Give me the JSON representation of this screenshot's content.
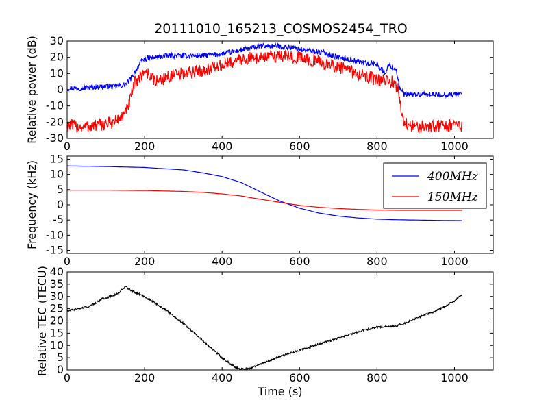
{
  "figure_title": "20111010_165213_COSMOS2454_TRO",
  "colors": {
    "series_400": "#0000ff",
    "series_150": "#ff0000",
    "tec": "#000000",
    "axes": "#000000",
    "background": "#ffffff"
  },
  "chart_data": [
    {
      "type": "line",
      "title": "20111010_165213_COSMOS2454_TRO",
      "xlabel": "",
      "ylabel": "Relative power (dB)",
      "xlim": [
        0,
        1100
      ],
      "ylim": [
        -30,
        30
      ],
      "xticks": [
        0,
        200,
        400,
        600,
        800,
        1000
      ],
      "yticks": [
        -30,
        -20,
        -10,
        0,
        10,
        20,
        30
      ],
      "grid": false,
      "series": [
        {
          "color": "#0000ff",
          "noise": 1.6,
          "x": [
            0,
            40,
            80,
            120,
            150,
            165,
            180,
            190,
            200,
            230,
            260,
            300,
            350,
            400,
            420,
            460,
            500,
            540,
            580,
            620,
            660,
            700,
            740,
            780,
            800,
            820,
            830,
            840,
            850,
            860,
            870,
            900,
            1000,
            1020
          ],
          "y": [
            1,
            1,
            2,
            2,
            3,
            7,
            13,
            17,
            19,
            20,
            21,
            21,
            21,
            22,
            23,
            25,
            27,
            27,
            26,
            24,
            23,
            20,
            18,
            16,
            16,
            10,
            15,
            14,
            12,
            0,
            -3,
            -3,
            -3,
            -2
          ]
        },
        {
          "color": "#ff0000",
          "noise": 4,
          "x": [
            0,
            40,
            80,
            120,
            150,
            165,
            175,
            190,
            200,
            230,
            260,
            300,
            350,
            400,
            450,
            500,
            550,
            600,
            650,
            700,
            750,
            800,
            840,
            855,
            865,
            880,
            900,
            950,
            1000,
            1020
          ],
          "y": [
            -22,
            -23,
            -22,
            -20,
            -15,
            -5,
            5,
            8,
            12,
            5,
            8,
            10,
            12,
            15,
            19,
            20,
            21,
            20,
            17,
            14,
            10,
            6,
            5,
            0,
            -18,
            -22,
            -23,
            -22,
            -22,
            -22
          ]
        }
      ]
    },
    {
      "type": "line",
      "title": "",
      "xlabel": "",
      "ylabel": "Frequency (kHz)",
      "xlim": [
        0,
        1100
      ],
      "ylim": [
        -16,
        16
      ],
      "xticks": [
        0,
        200,
        400,
        600,
        800,
        1000
      ],
      "yticks": [
        -15,
        -10,
        -5,
        0,
        5,
        10,
        15
      ],
      "grid": false,
      "legend_position": "top-right",
      "series": [
        {
          "name": "400MHz",
          "color": "#0000ff",
          "x": [
            0,
            100,
            200,
            300,
            350,
            400,
            450,
            500,
            550,
            600,
            650,
            700,
            750,
            800,
            850,
            900,
            950,
            1020
          ],
          "y": [
            12.8,
            12.6,
            12.3,
            11.5,
            10.5,
            9.3,
            7.3,
            4.2,
            1.2,
            -1.1,
            -2.7,
            -3.7,
            -4.3,
            -4.7,
            -4.9,
            -5.0,
            -5.1,
            -5.2
          ]
        },
        {
          "name": "150MHz",
          "color": "#ff0000",
          "x": [
            0,
            100,
            200,
            300,
            350,
            400,
            450,
            500,
            550,
            600,
            650,
            700,
            750,
            800,
            850,
            900,
            950,
            1020
          ],
          "y": [
            4.8,
            4.8,
            4.7,
            4.4,
            4.1,
            3.6,
            2.9,
            1.8,
            0.8,
            -0.2,
            -0.8,
            -1.2,
            -1.5,
            -1.7,
            -1.8,
            -1.8,
            -1.8,
            -1.8
          ]
        }
      ]
    },
    {
      "type": "line",
      "title": "",
      "xlabel": "Time (s)",
      "ylabel": "Relative TEC (TECU)",
      "xlim": [
        0,
        1100
      ],
      "ylim": [
        0,
        40
      ],
      "xticks": [
        0,
        200,
        400,
        600,
        800,
        1000
      ],
      "yticks": [
        0,
        5,
        10,
        15,
        20,
        25,
        30,
        35,
        40
      ],
      "grid": false,
      "series": [
        {
          "color": "#000000",
          "noise": 0.4,
          "x": [
            0,
            30,
            60,
            90,
            110,
            130,
            150,
            170,
            200,
            250,
            300,
            350,
            400,
            430,
            450,
            470,
            500,
            550,
            600,
            650,
            700,
            750,
            800,
            850,
            870,
            900,
            950,
            1000,
            1020
          ],
          "y": [
            24,
            25,
            26,
            29,
            30,
            31,
            34,
            32,
            30,
            25,
            19,
            12,
            5,
            1.5,
            0.3,
            0.5,
            2.5,
            5.5,
            8,
            10.5,
            13,
            15.5,
            17.5,
            18,
            19,
            21,
            24,
            28,
            31
          ]
        }
      ]
    }
  ]
}
